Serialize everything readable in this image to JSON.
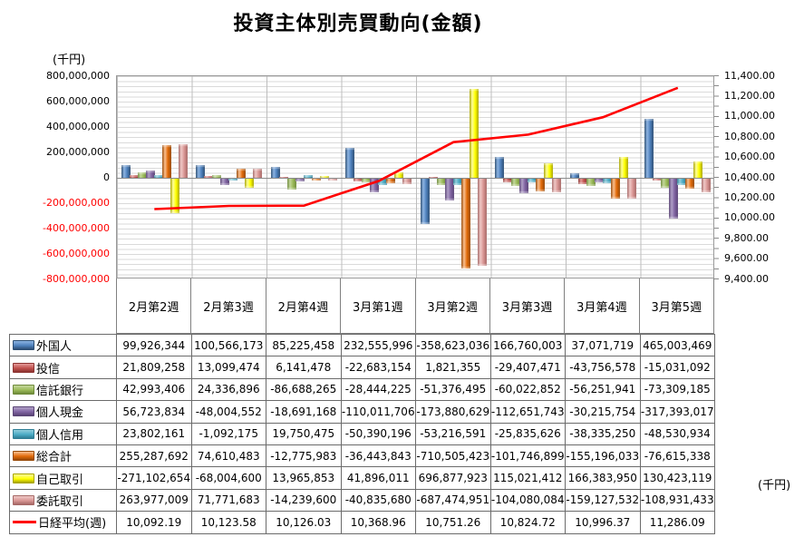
{
  "title": "投資主体別売買動向(金額)",
  "left_axis_unit": "(千円)",
  "table_unit": "(千円)",
  "chart_data": {
    "type": "bar+line",
    "title": "投資主体別売買動向(金額)",
    "categories": [
      "2月第2週",
      "2月第3週",
      "2月第4週",
      "3月第1週",
      "3月第2週",
      "3月第3週",
      "3月第4週",
      "3月第5週"
    ],
    "left_axis": {
      "unit": "(千円)",
      "min": -800000000,
      "max": 800000000,
      "major_step": 200000000,
      "negative_label_color": "#ff0000",
      "applies_to": "bars"
    },
    "right_axis": {
      "min": 9400,
      "max": 11400,
      "major_step": 200,
      "applies_to": "line"
    },
    "grid": true,
    "legend_position": "table-left-column",
    "series": [
      {
        "type": "bar",
        "name": "外国人",
        "color": "#4F81BD",
        "light": "#8DB4E2",
        "dark": "#2C4D72",
        "values": [
          99926344,
          100566173,
          85225458,
          232555996,
          -358623036,
          166760003,
          37071719,
          465003469
        ]
      },
      {
        "type": "bar",
        "name": "投信",
        "color": "#C0504D",
        "light": "#E39997",
        "dark": "#8C3331",
        "values": [
          21809258,
          13099474,
          6141478,
          -22683154,
          1821355,
          -29407471,
          -43756578,
          -15031092
        ]
      },
      {
        "type": "bar",
        "name": "信託銀行",
        "color": "#9BBB59",
        "light": "#C3D69B",
        "dark": "#6e8a3a",
        "values": [
          42993406,
          24336896,
          -86688265,
          -28444225,
          -51376495,
          -60022852,
          -56251941,
          -73309185
        ]
      },
      {
        "type": "bar",
        "name": "個人現金",
        "color": "#8064A2",
        "light": "#B1A0C7",
        "dark": "#5a4475",
        "values": [
          56723834,
          -48004552,
          -18691168,
          -110011706,
          -173880629,
          -112651743,
          -30215754,
          -317393017
        ]
      },
      {
        "type": "bar",
        "name": "個人信用",
        "color": "#4BACC6",
        "light": "#92CDDC",
        "dark": "#2f7d94",
        "values": [
          23802161,
          -1092175,
          19750475,
          -50390196,
          -53216591,
          -25835626,
          -38335250,
          -48530934
        ]
      },
      {
        "type": "bar",
        "name": "総合計",
        "color": "#E26B0A",
        "light": "#FABF8F",
        "dark": "#974806",
        "values": [
          255287692,
          74610483,
          -12775983,
          -36443843,
          -710505423,
          -101746899,
          -155196033,
          -76615338
        ]
      },
      {
        "type": "bar",
        "name": "自己取引",
        "color": "#FFFF00",
        "light": "#FFFF99",
        "dark": "#a8a400",
        "values": [
          -271102654,
          -68004600,
          13965853,
          41896011,
          696877923,
          115021412,
          166383950,
          130423119
        ]
      },
      {
        "type": "bar",
        "name": "委託取引",
        "color": "#D99694",
        "light": "#EFC8C6",
        "dark": "#a66866",
        "values": [
          263977009,
          71771683,
          -14239600,
          -40835680,
          -687474951,
          -104080084,
          -159127532,
          -108931433
        ]
      },
      {
        "type": "line",
        "name": "日経平均(週)",
        "color": "#FF0000",
        "values": [
          10092.19,
          10123.58,
          10126.03,
          10368.96,
          10751.26,
          10824.72,
          10996.37,
          11286.09
        ]
      }
    ]
  }
}
